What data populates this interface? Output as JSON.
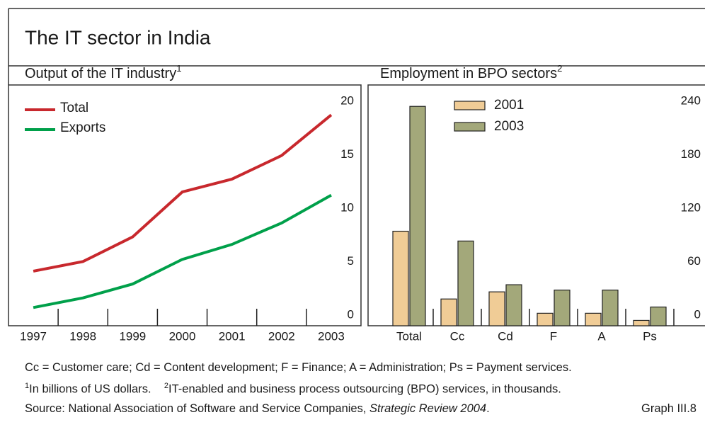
{
  "title": "The IT sector in India",
  "chart_data": [
    {
      "type": "line",
      "subtitle": "Output of the IT industry",
      "subtitle_mark": "1",
      "x": [
        1997,
        1998,
        1999,
        2000,
        2001,
        2002,
        2003
      ],
      "xlim": [
        1996.5,
        2003.6
      ],
      "xticks": [
        1997,
        1998,
        1999,
        2000,
        2001,
        2002,
        2003
      ],
      "ylim": [
        0,
        22.5
      ],
      "yticks": [
        0,
        5,
        10,
        15,
        20
      ],
      "legend": "top-left",
      "series": [
        {
          "name": "Total",
          "color": "#c8282d",
          "values": [
            5.1,
            6.0,
            8.3,
            12.5,
            13.7,
            15.9,
            19.7
          ]
        },
        {
          "name": "Exports",
          "color": "#00a04a",
          "values": [
            1.7,
            2.6,
            3.9,
            6.2,
            7.6,
            9.6,
            12.2
          ]
        }
      ]
    },
    {
      "type": "bar",
      "subtitle": "Employment in BPO sectors",
      "subtitle_mark": "2",
      "categories": [
        "Total",
        "Cc",
        "Cd",
        "F",
        "A",
        "Ps"
      ],
      "ylim": [
        0,
        270
      ],
      "yticks": [
        0,
        60,
        120,
        180,
        240
      ],
      "legend": "top-left",
      "series": [
        {
          "name": "2001",
          "color": "#f0cc96",
          "values": [
            106,
            30,
            38,
            14,
            14,
            6
          ]
        },
        {
          "name": "2003",
          "color": "#a3a87a",
          "values": [
            246,
            95,
            46,
            40,
            40,
            21
          ]
        }
      ]
    }
  ],
  "abbreviations": "Cc = Customer care; Cd = Content development; F = Finance; A = Administration; Ps = Payment services.",
  "notes": [
    {
      "mark": "1",
      "text": "In billions of US dollars."
    },
    {
      "mark": "2",
      "text": "IT-enabled and business process outsourcing (BPO) services, in thousands."
    }
  ],
  "source": {
    "prefix": "Source: National Association of Software and Service Companies, ",
    "title": "Strategic Review 2004",
    "suffix": "."
  },
  "graph_label": "Graph III.8"
}
